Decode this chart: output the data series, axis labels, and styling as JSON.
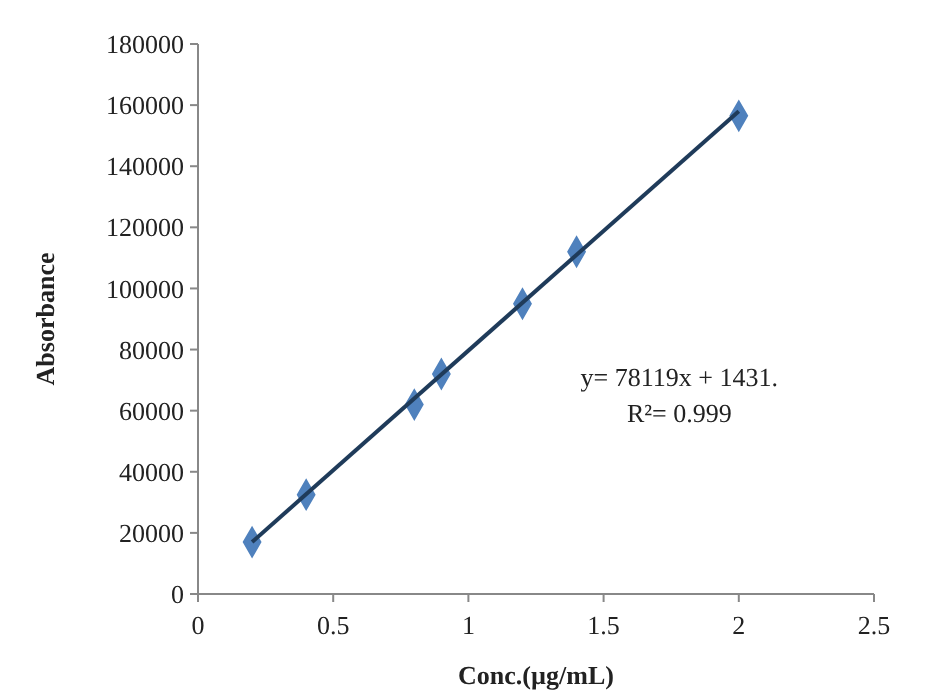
{
  "chart_data": {
    "type": "scatter",
    "xlabel": "Conc.(µg/mL)",
    "ylabel": "Absorbance",
    "xlim": [
      0,
      2.5
    ],
    "xticks": [
      0,
      0.5,
      1,
      1.5,
      2,
      2.5
    ],
    "ylim": [
      0,
      180000
    ],
    "yticks": [
      0,
      20000,
      40000,
      60000,
      80000,
      100000,
      120000,
      140000,
      160000,
      180000
    ],
    "grid": false,
    "marker": "diamond",
    "series": [
      {
        "color": "#4f81bd",
        "x": [
          0.2,
          0.4,
          0.8,
          0.9,
          1.2,
          1.4,
          2.0
        ],
        "values": [
          17000,
          32500,
          62000,
          72000,
          95000,
          112000,
          156500
        ]
      },
      {
        "type": "line",
        "color": "#1f3b5a",
        "marker": "none",
        "line_style": "solid",
        "x": [
          0.2,
          2.0
        ],
        "values": [
          17000,
          158000
        ]
      }
    ],
    "annotations": [
      "y= 78119x + 1431.",
      "R²= 0.999"
    ]
  }
}
